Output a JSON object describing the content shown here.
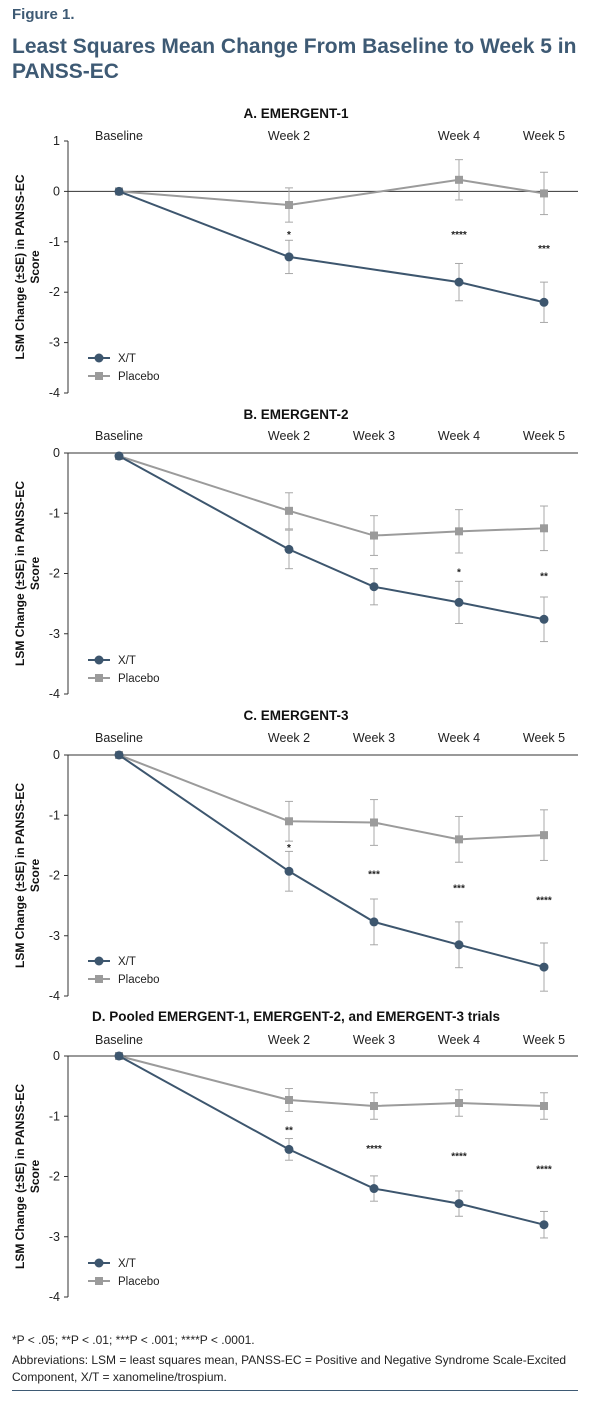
{
  "figure_label": "Figure 1.",
  "figure_title": "Least Squares Mean Change From Baseline to Week 5 in PANSS-EC",
  "footnote": "*P < .05; **P < .01; ***P < .001; ****P < .0001.",
  "abbreviations": "Abbreviations: LSM = least squares mean, PANSS-EC = Positive and Negative Syndrome Scale-Excited Component, X/T = xanomeline/trospium.",
  "colors": {
    "xt": "#3d566e",
    "placebo": "#9b9b9b",
    "title": "#3e5a74"
  },
  "legend_labels": [
    "X/T",
    "Placebo"
  ],
  "chart_data": [
    {
      "type": "line",
      "title": "A. EMERGENT-1",
      "ylabel": "LSM Change (±SE) in PANSS-EC Score",
      "ylim": [
        -4,
        1
      ],
      "yticks": [
        1,
        0,
        -1,
        -2,
        -3,
        -4
      ],
      "categories": [
        "Baseline",
        "Week 2",
        "Week 4",
        "Week 5"
      ],
      "x": [
        0,
        2,
        4,
        5
      ],
      "zero_line": true,
      "legend": "bottom-left",
      "series": [
        {
          "name": "X/T",
          "marker": "circle",
          "values": [
            0,
            -1.3,
            -1.8,
            -2.2
          ],
          "se": [
            0,
            0.33,
            0.37,
            0.4
          ]
        },
        {
          "name": "Placebo",
          "marker": "square",
          "values": [
            0,
            -0.27,
            0.23,
            -0.04
          ],
          "se": [
            0,
            0.34,
            0.4,
            0.42
          ]
        }
      ],
      "significance": [
        {
          "x": 2,
          "label": "*",
          "y": -0.85
        },
        {
          "x": 4,
          "label": "****",
          "y": -0.85
        },
        {
          "x": 5,
          "label": "***",
          "y": -1.12
        }
      ]
    },
    {
      "type": "line",
      "title": "B. EMERGENT-2",
      "ylabel": "LSM Change (±SE) in PANSS-EC Score",
      "ylim": [
        -4,
        0
      ],
      "yticks": [
        0,
        -1,
        -2,
        -3,
        -4
      ],
      "categories": [
        "Baseline",
        "Week 2",
        "Week 3",
        "Week 4",
        "Week 5"
      ],
      "x": [
        0,
        2,
        3,
        4,
        5
      ],
      "zero_line": false,
      "legend": "bottom-left",
      "series": [
        {
          "name": "X/T",
          "marker": "circle",
          "values": [
            -0.05,
            -1.6,
            -2.22,
            -2.48,
            -2.76
          ],
          "se": [
            0,
            0.32,
            0.3,
            0.35,
            0.37
          ]
        },
        {
          "name": "Placebo",
          "marker": "square",
          "values": [
            -0.05,
            -0.96,
            -1.37,
            -1.3,
            -1.25
          ],
          "se": [
            0,
            0.3,
            0.33,
            0.36,
            0.37
          ]
        }
      ],
      "significance": [
        {
          "x": 4,
          "label": "*",
          "y": -1.97
        },
        {
          "x": 5,
          "label": "**",
          "y": -2.03
        }
      ]
    },
    {
      "type": "line",
      "title": "C. EMERGENT-3",
      "ylabel": "LSM Change (±SE) in PANSS-EC Score",
      "ylim": [
        -4,
        0
      ],
      "yticks": [
        0,
        -1,
        -2,
        -3,
        -4
      ],
      "categories": [
        "Baseline",
        "Week 2",
        "Week 3",
        "Week 4",
        "Week 5"
      ],
      "x": [
        0,
        2,
        3,
        4,
        5
      ],
      "zero_line": false,
      "legend": "bottom-left",
      "series": [
        {
          "name": "X/T",
          "marker": "circle",
          "values": [
            0,
            -1.93,
            -2.77,
            -3.15,
            -3.52
          ],
          "se": [
            0,
            0.33,
            0.38,
            0.38,
            0.4
          ]
        },
        {
          "name": "Placebo",
          "marker": "square",
          "values": [
            0,
            -1.1,
            -1.12,
            -1.4,
            -1.33
          ],
          "se": [
            0,
            0.33,
            0.38,
            0.38,
            0.42
          ]
        }
      ],
      "significance": [
        {
          "x": 2,
          "label": "*",
          "y": -1.53
        },
        {
          "x": 3,
          "label": "***",
          "y": -1.97
        },
        {
          "x": 4,
          "label": "***",
          "y": -2.2
        },
        {
          "x": 5,
          "label": "****",
          "y": -2.4
        }
      ]
    },
    {
      "type": "line",
      "title": "D. Pooled EMERGENT-1, EMERGENT-2, and EMERGENT-3 trials",
      "ylabel": "LSM Change (±SE) in PANSS-EC Score",
      "ylim": [
        -4,
        0
      ],
      "yticks": [
        0,
        -1,
        -2,
        -3,
        -4
      ],
      "categories": [
        "Baseline",
        "Week 2",
        "Week 3",
        "Week 4",
        "Week 5"
      ],
      "x": [
        0,
        2,
        3,
        4,
        5
      ],
      "zero_line": false,
      "legend": "bottom-left",
      "series": [
        {
          "name": "X/T",
          "marker": "circle",
          "values": [
            0,
            -1.55,
            -2.2,
            -2.45,
            -2.8
          ],
          "se": [
            0,
            0.18,
            0.21,
            0.21,
            0.22
          ]
        },
        {
          "name": "Placebo",
          "marker": "square",
          "values": [
            0,
            -0.73,
            -0.83,
            -0.78,
            -0.83
          ],
          "se": [
            0,
            0.19,
            0.22,
            0.22,
            0.22
          ]
        }
      ],
      "significance": [
        {
          "x": 2,
          "label": "**",
          "y": -1.22
        },
        {
          "x": 3,
          "label": "****",
          "y": -1.53
        },
        {
          "x": 4,
          "label": "****",
          "y": -1.65
        },
        {
          "x": 5,
          "label": "****",
          "y": -1.87
        }
      ]
    }
  ]
}
